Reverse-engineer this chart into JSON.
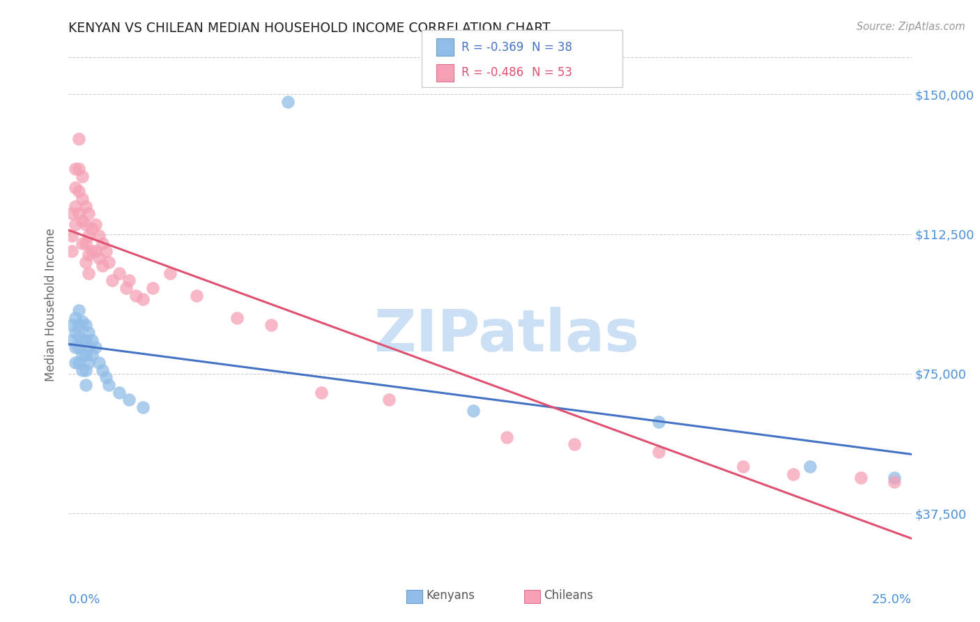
{
  "title": "KENYAN VS CHILEAN MEDIAN HOUSEHOLD INCOME CORRELATION CHART",
  "source": "Source: ZipAtlas.com",
  "ylabel": "Median Household Income",
  "yticks": [
    37500,
    75000,
    112500,
    150000
  ],
  "ytick_labels": [
    "$37,500",
    "$75,000",
    "$112,500",
    "$150,000"
  ],
  "xmin": 0.0,
  "xmax": 0.25,
  "ymin": 25000,
  "ymax": 162000,
  "legend_bottom": [
    "Kenyans",
    "Chileans"
  ],
  "kenyan_color": "#92bde8",
  "chilean_color": "#f5a0b5",
  "kenyan_edge_color": "#6699cc",
  "chilean_edge_color": "#e07090",
  "kenyan_line_color": "#4472c4",
  "chilean_line_color": "#e05070",
  "watermark_text": "ZIPatlas",
  "watermark_color": "#cce0f5",
  "title_color": "#222222",
  "axis_label_color": "#4a90d9",
  "source_color": "#999999",
  "background_color": "#ffffff",
  "grid_color": "#cccccc",
  "legend_r1": "R = -0.369",
  "legend_n1": "N = 38",
  "legend_r2": "R = -0.486",
  "legend_n2": "N = 53",
  "kenyan_x": [
    0.001,
    0.001,
    0.002,
    0.002,
    0.002,
    0.002,
    0.003,
    0.003,
    0.003,
    0.003,
    0.003,
    0.004,
    0.004,
    0.004,
    0.004,
    0.005,
    0.005,
    0.005,
    0.005,
    0.005,
    0.006,
    0.006,
    0.006,
    0.007,
    0.007,
    0.008,
    0.009,
    0.01,
    0.011,
    0.012,
    0.015,
    0.018,
    0.022,
    0.065,
    0.12,
    0.175,
    0.22,
    0.245
  ],
  "kenyan_y": [
    88000,
    84000,
    90000,
    86000,
    82000,
    78000,
    92000,
    88000,
    85000,
    82000,
    78000,
    89000,
    84000,
    80000,
    76000,
    88000,
    84000,
    80000,
    76000,
    72000,
    86000,
    82000,
    78000,
    84000,
    80000,
    82000,
    78000,
    76000,
    74000,
    72000,
    70000,
    68000,
    66000,
    148000,
    65000,
    62000,
    50000,
    47000
  ],
  "chilean_x": [
    0.001,
    0.001,
    0.001,
    0.002,
    0.002,
    0.002,
    0.002,
    0.003,
    0.003,
    0.003,
    0.003,
    0.004,
    0.004,
    0.004,
    0.004,
    0.005,
    0.005,
    0.005,
    0.005,
    0.006,
    0.006,
    0.006,
    0.006,
    0.007,
    0.007,
    0.008,
    0.008,
    0.009,
    0.009,
    0.01,
    0.01,
    0.011,
    0.012,
    0.013,
    0.015,
    0.017,
    0.018,
    0.02,
    0.022,
    0.025,
    0.03,
    0.038,
    0.05,
    0.06,
    0.075,
    0.095,
    0.13,
    0.15,
    0.175,
    0.2,
    0.215,
    0.235,
    0.245
  ],
  "chilean_y": [
    118000,
    112000,
    108000,
    130000,
    125000,
    120000,
    115000,
    138000,
    130000,
    124000,
    118000,
    128000,
    122000,
    116000,
    110000,
    120000,
    115000,
    110000,
    105000,
    118000,
    112000,
    107000,
    102000,
    114000,
    108000,
    115000,
    108000,
    112000,
    106000,
    110000,
    104000,
    108000,
    105000,
    100000,
    102000,
    98000,
    100000,
    96000,
    95000,
    98000,
    102000,
    96000,
    90000,
    88000,
    70000,
    68000,
    58000,
    56000,
    54000,
    50000,
    48000,
    47000,
    46000
  ]
}
